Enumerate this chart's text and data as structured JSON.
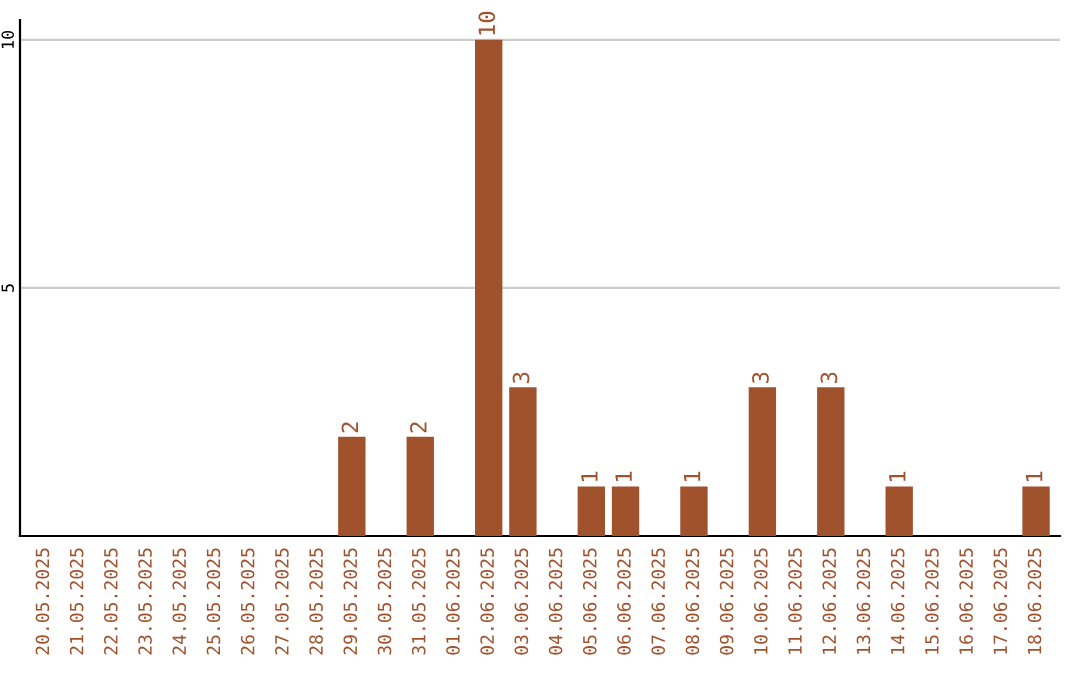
{
  "chart_data": {
    "type": "bar",
    "categories": [
      "20.05.2025",
      "21.05.2025",
      "22.05.2025",
      "23.05.2025",
      "24.05.2025",
      "25.05.2025",
      "26.05.2025",
      "27.05.2025",
      "28.05.2025",
      "29.05.2025",
      "30.05.2025",
      "31.05.2025",
      "01.06.2025",
      "02.06.2025",
      "03.06.2025",
      "04.06.2025",
      "05.06.2025",
      "06.06.2025",
      "07.06.2025",
      "08.06.2025",
      "09.06.2025",
      "10.06.2025",
      "11.06.2025",
      "12.06.2025",
      "13.06.2025",
      "14.06.2025",
      "15.06.2025",
      "16.06.2025",
      "17.06.2025",
      "18.06.2025"
    ],
    "values": [
      0,
      0,
      0,
      0,
      0,
      0,
      0,
      0,
      0,
      2,
      0,
      2,
      0,
      10,
      3,
      0,
      1,
      1,
      0,
      1,
      0,
      3,
      0,
      3,
      0,
      1,
      0,
      0,
      0,
      1
    ],
    "value_labels": [
      null,
      null,
      null,
      null,
      null,
      null,
      null,
      null,
      null,
      "2",
      null,
      "2",
      null,
      "10",
      "3",
      null,
      "1",
      "1",
      null,
      "1",
      null,
      "3",
      null,
      "3",
      null,
      "1",
      null,
      null,
      null,
      "1"
    ],
    "color": "#a0522d",
    "ylim": [
      0,
      10.4
    ],
    "yticks": [
      {
        "value": 0,
        "label": null
      },
      5,
      10
    ],
    "grid": "y",
    "legend": false
  }
}
